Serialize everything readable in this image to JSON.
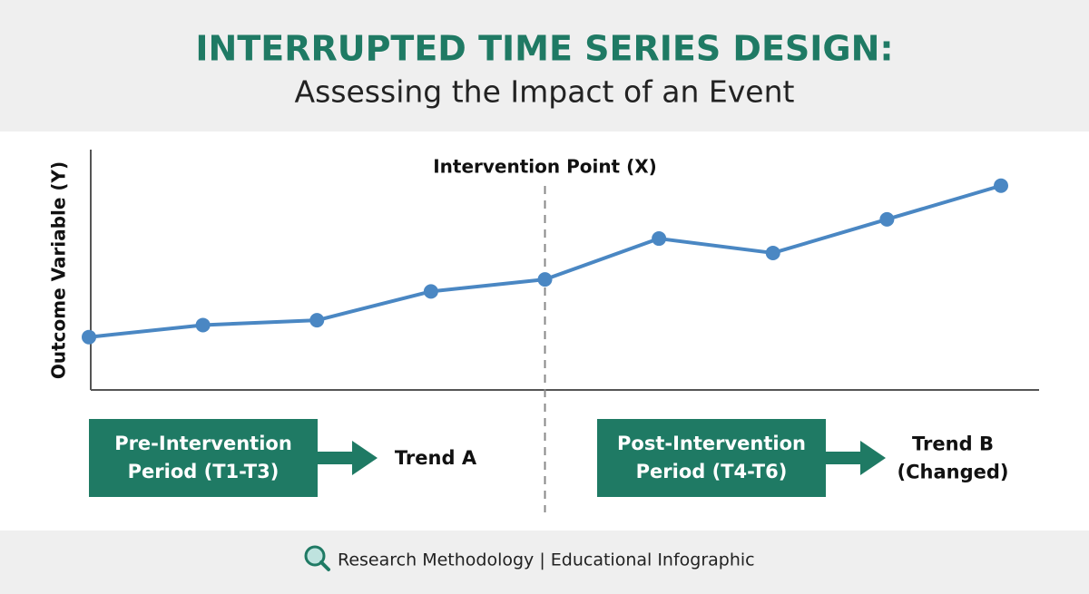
{
  "header": {
    "title": "INTERRUPTED TIME SERIES DESIGN:",
    "subtitle": "Assessing the Impact of an Event"
  },
  "chart_data": {
    "type": "line",
    "y_label": "Outcome Variable (Y)",
    "annotation": "Intervention Point (X)",
    "values": [
      22,
      27,
      29,
      41,
      46,
      63,
      57,
      71,
      85
    ],
    "ylim": [
      0,
      100
    ],
    "color": "#4a87c3",
    "intervention_index": 4
  },
  "periods": [
    {
      "label": [
        "Pre-Intervention",
        "Period (T1-T3)"
      ],
      "trend": [
        "Trend A"
      ]
    },
    {
      "label": [
        "Post-Intervention",
        "Period (T4-T6)"
      ],
      "trend": [
        "Trend B",
        "(Changed)"
      ]
    }
  ],
  "footer": "Research Methodology | Educational Infographic"
}
